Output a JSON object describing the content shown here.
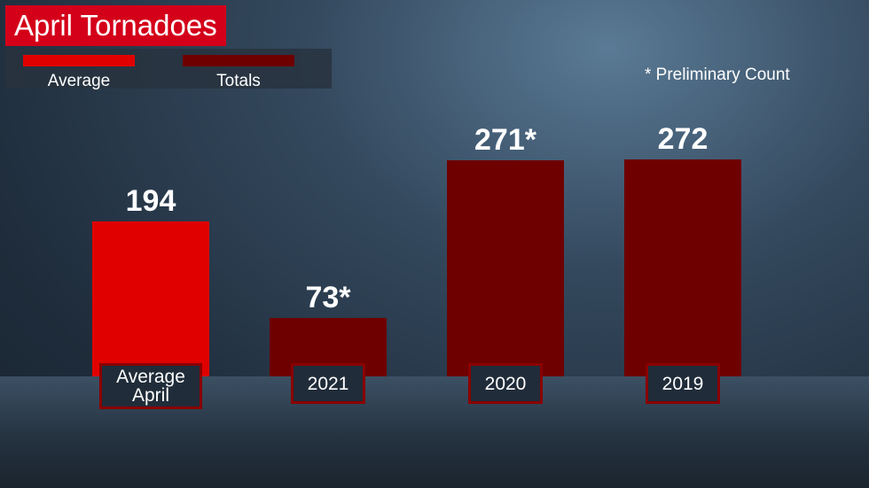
{
  "chart_data": {
    "type": "bar",
    "title": "April Tornadoes",
    "note": "* Preliminary Count",
    "categories": [
      "Average April",
      "2021",
      "2020",
      "2019"
    ],
    "series": [
      {
        "name": "Average",
        "color": "#e00000",
        "values": [
          194,
          null,
          null,
          null
        ],
        "value_labels": [
          "194",
          null,
          null,
          null
        ]
      },
      {
        "name": "Totals",
        "color": "#6e0000",
        "values": [
          null,
          73,
          271,
          272
        ],
        "value_labels": [
          null,
          "73*",
          "271*",
          "272"
        ]
      }
    ]
  }
}
